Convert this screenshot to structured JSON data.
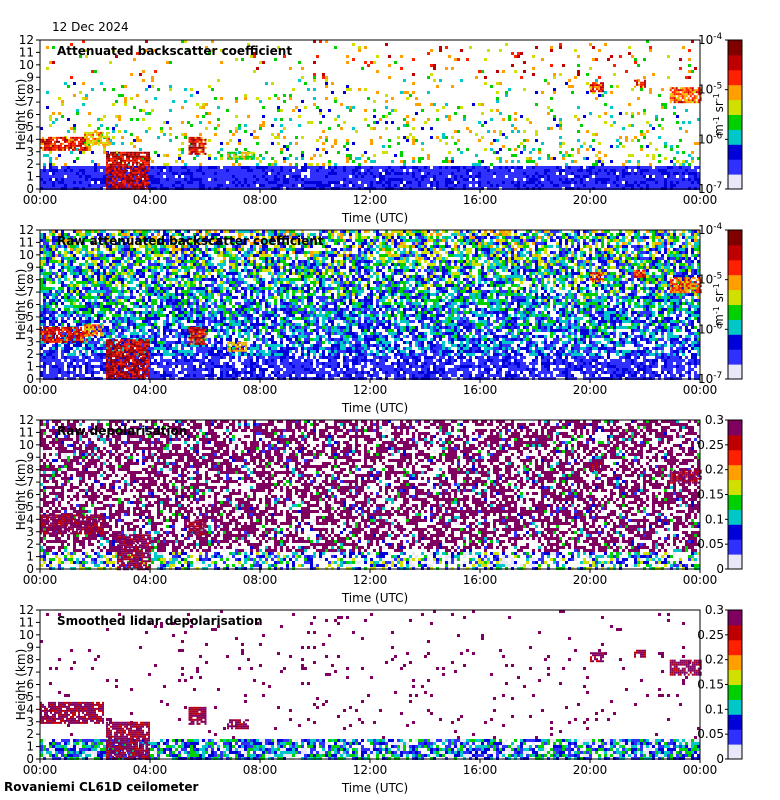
{
  "date": "12 Dec 2024",
  "footer": "Rovaniemi CL61D ceilometer",
  "colors": {
    "colormap": [
      "#e8e8f8",
      "#3030ff",
      "#0000d8",
      "#00c8c8",
      "#00d000",
      "#d0e000",
      "#ffa000",
      "#ff2000",
      "#c00000",
      "#800000"
    ],
    "depol_colormap": [
      "#e8e8f8",
      "#3030ff",
      "#0000d8",
      "#00c8c8",
      "#00d000",
      "#d0e000",
      "#ffa000",
      "#ff2000",
      "#c00000",
      "#800060"
    ]
  },
  "chart_data": [
    {
      "type": "heatmap",
      "title": "Attenuated backscatter coefficient",
      "xlabel": "Time (UTC)",
      "ylabel": "Height (km)",
      "x_ticks": [
        "00:00",
        "04:00",
        "08:00",
        "12:00",
        "16:00",
        "20:00",
        "00:00"
      ],
      "y_ticks": [
        "0",
        "1",
        "2",
        "3",
        "4",
        "5",
        "6",
        "7",
        "8",
        "9",
        "10",
        "11",
        "12"
      ],
      "ylim": [
        0,
        12
      ],
      "xlim_hours": [
        0,
        24
      ],
      "colorbar": {
        "scale": "log",
        "ticks": [
          "10^-7",
          "10^-6",
          "10^-5",
          "10^-4"
        ],
        "unit": "m^-1 sr^-1"
      },
      "features": [
        {
          "t0": 0.0,
          "t1": 1.7,
          "h0": 3.2,
          "h1": 4.2,
          "level": 0.8
        },
        {
          "t0": 1.6,
          "t1": 2.5,
          "h0": 3.6,
          "h1": 4.6,
          "level": 0.6
        },
        {
          "t0": 2.4,
          "t1": 4.0,
          "h0": 0.0,
          "h1": 3.0,
          "level": 0.85
        },
        {
          "t0": 5.4,
          "t1": 6.0,
          "h0": 2.8,
          "h1": 4.2,
          "level": 0.8
        },
        {
          "t0": 6.8,
          "t1": 7.8,
          "h0": 2.4,
          "h1": 3.0,
          "level": 0.5
        },
        {
          "t0": 20.0,
          "t1": 20.5,
          "h0": 7.8,
          "h1": 8.6,
          "level": 0.78
        },
        {
          "t0": 21.6,
          "t1": 22.0,
          "h0": 8.3,
          "h1": 8.8,
          "level": 0.75
        },
        {
          "t0": 22.9,
          "t1": 24.0,
          "h0": 7.0,
          "h1": 8.2,
          "level": 0.7
        }
      ]
    },
    {
      "type": "heatmap",
      "title": "Raw attenuated backscatter coefficient",
      "xlabel": "Time (UTC)",
      "ylabel": "Height (km)",
      "x_ticks": [
        "00:00",
        "04:00",
        "08:00",
        "12:00",
        "16:00",
        "20:00",
        "00:00"
      ],
      "y_ticks": [
        "0",
        "1",
        "2",
        "3",
        "4",
        "5",
        "6",
        "7",
        "8",
        "9",
        "10",
        "11",
        "12"
      ],
      "ylim": [
        0,
        12
      ],
      "xlim_hours": [
        0,
        24
      ],
      "colorbar": {
        "scale": "log",
        "ticks": [
          "10^-7",
          "10^-6",
          "10^-5",
          "10^-4"
        ],
        "unit": "m^-1 sr^-1"
      },
      "features": [
        {
          "t0": 0.0,
          "t1": 1.7,
          "h0": 3.0,
          "h1": 4.2,
          "level": 0.8
        },
        {
          "t0": 1.6,
          "t1": 2.3,
          "h0": 3.5,
          "h1": 4.4,
          "level": 0.7
        },
        {
          "t0": 2.4,
          "t1": 4.0,
          "h0": 0.0,
          "h1": 3.2,
          "level": 0.85
        },
        {
          "t0": 5.4,
          "t1": 6.0,
          "h0": 2.8,
          "h1": 4.2,
          "level": 0.8
        },
        {
          "t0": 6.8,
          "t1": 7.5,
          "h0": 2.2,
          "h1": 3.0,
          "level": 0.6
        },
        {
          "t0": 20.0,
          "t1": 20.5,
          "h0": 7.8,
          "h1": 8.6,
          "level": 0.75
        },
        {
          "t0": 21.6,
          "t1": 22.0,
          "h0": 8.3,
          "h1": 8.8,
          "level": 0.75
        },
        {
          "t0": 22.9,
          "t1": 24.0,
          "h0": 7.0,
          "h1": 8.2,
          "level": 0.7
        }
      ]
    },
    {
      "type": "heatmap",
      "title": "Raw depolarisation",
      "xlabel": "Time (UTC)",
      "ylabel": "Height (km)",
      "x_ticks": [
        "00:00",
        "04:00",
        "08:00",
        "12:00",
        "16:00",
        "20:00",
        "00:00"
      ],
      "y_ticks": [
        "0",
        "1",
        "2",
        "3",
        "4",
        "5",
        "6",
        "7",
        "8",
        "9",
        "10",
        "11",
        "12"
      ],
      "ylim": [
        0,
        12
      ],
      "xlim_hours": [
        0,
        24
      ],
      "colorbar": {
        "scale": "linear",
        "ticks": [
          "0",
          "0.05",
          "0.1",
          "0.15",
          "0.2",
          "0.25",
          "0.3"
        ],
        "range": [
          0,
          0.3
        ]
      },
      "features": [
        {
          "t0": 0.0,
          "t1": 2.3,
          "h0": 2.9,
          "h1": 4.4,
          "level": 0.95
        },
        {
          "t0": 2.8,
          "t1": 4.0,
          "h0": 0.0,
          "h1": 2.8,
          "level": 0.95
        },
        {
          "t0": 5.4,
          "t1": 6.0,
          "h0": 2.8,
          "h1": 4.0,
          "level": 0.95
        },
        {
          "t0": 20.0,
          "t1": 20.5,
          "h0": 7.8,
          "h1": 8.6,
          "level": 0.95
        },
        {
          "t0": 22.9,
          "t1": 24.0,
          "h0": 7.0,
          "h1": 8.0,
          "level": 0.95
        }
      ]
    },
    {
      "type": "heatmap",
      "title": "Smoothed lidar depolarisation",
      "xlabel": "Time (UTC)",
      "ylabel": "Height (km)",
      "x_ticks": [
        "00:00",
        "04:00",
        "08:00",
        "12:00",
        "16:00",
        "20:00",
        "00:00"
      ],
      "y_ticks": [
        "0",
        "1",
        "2",
        "3",
        "4",
        "5",
        "6",
        "7",
        "8",
        "9",
        "10",
        "11",
        "12"
      ],
      "ylim": [
        0,
        12
      ],
      "xlim_hours": [
        0,
        24
      ],
      "colorbar": {
        "scale": "linear",
        "ticks": [
          "0",
          "0.05",
          "0.1",
          "0.15",
          "0.2",
          "0.25",
          "0.3"
        ],
        "range": [
          0,
          0.3
        ]
      },
      "features": [
        {
          "t0": 0.0,
          "t1": 2.3,
          "h0": 2.9,
          "h1": 4.6,
          "level": 0.95
        },
        {
          "t0": 2.4,
          "t1": 4.0,
          "h0": 0.0,
          "h1": 3.0,
          "level": 0.95
        },
        {
          "t0": 5.4,
          "t1": 6.0,
          "h0": 2.8,
          "h1": 4.2,
          "level": 0.95
        },
        {
          "t0": 6.8,
          "t1": 7.6,
          "h0": 2.4,
          "h1": 3.2,
          "level": 0.95
        },
        {
          "t0": 20.0,
          "t1": 20.5,
          "h0": 7.8,
          "h1": 8.6,
          "level": 0.95
        },
        {
          "t0": 21.6,
          "t1": 22.0,
          "h0": 8.3,
          "h1": 8.8,
          "level": 0.95
        },
        {
          "t0": 22.9,
          "t1": 24.0,
          "h0": 6.8,
          "h1": 8.0,
          "level": 0.95
        }
      ]
    }
  ]
}
